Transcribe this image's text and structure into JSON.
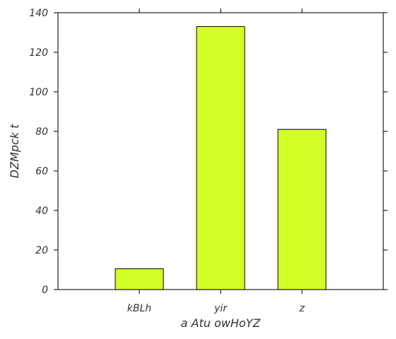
{
  "chart_data": {
    "type": "bar",
    "categories": [
      "kBLh",
      "yir",
      "z"
    ],
    "values": [
      10.5,
      133,
      81
    ],
    "title": "",
    "xlabel": "a Atu owHoYZ",
    "ylabel": "DZMpck t",
    "ylim": [
      0,
      140
    ],
    "yticks": [
      0,
      20,
      40,
      60,
      80,
      100,
      120,
      140
    ],
    "grid": false,
    "legend": "none",
    "bar_color": "#d4ff26",
    "edge_color": "#000000"
  }
}
